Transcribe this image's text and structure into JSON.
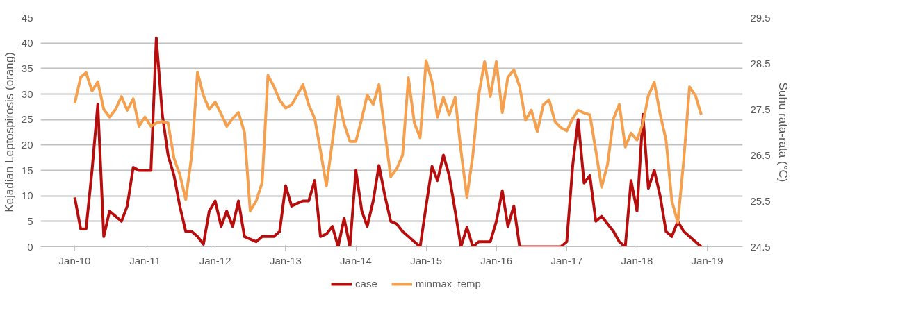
{
  "chart_data": {
    "type": "line",
    "ylabel": "Kejadian Leptospirosis (orang)",
    "y2label": "Suhu rata-rata (°C)",
    "x": [
      "2010-01",
      "2010-02",
      "2010-03",
      "2010-04",
      "2010-05",
      "2010-06",
      "2010-07",
      "2010-08",
      "2010-09",
      "2010-10",
      "2010-11",
      "2010-12",
      "2011-01",
      "2011-02",
      "2011-03",
      "2011-04",
      "2011-05",
      "2011-06",
      "2011-07",
      "2011-08",
      "2011-09",
      "2011-10",
      "2011-11",
      "2011-12",
      "2012-01",
      "2012-02",
      "2012-03",
      "2012-04",
      "2012-05",
      "2012-06",
      "2012-07",
      "2012-08",
      "2012-09",
      "2012-10",
      "2012-11",
      "2012-12",
      "2013-01",
      "2013-02",
      "2013-03",
      "2013-04",
      "2013-05",
      "2013-06",
      "2013-07",
      "2013-08",
      "2013-09",
      "2013-10",
      "2013-11",
      "2013-12",
      "2014-01",
      "2014-02",
      "2014-03",
      "2014-04",
      "2014-05",
      "2014-06",
      "2014-07",
      "2014-08",
      "2014-09",
      "2014-10",
      "2014-11",
      "2014-12",
      "2015-01",
      "2015-02",
      "2015-03",
      "2015-04",
      "2015-05",
      "2015-06",
      "2015-07",
      "2015-08",
      "2015-09",
      "2015-10",
      "2015-11",
      "2015-12",
      "2016-01",
      "2016-02",
      "2016-03",
      "2016-04",
      "2016-05",
      "2016-06",
      "2016-07",
      "2016-08",
      "2016-09",
      "2016-10",
      "2016-11",
      "2016-12",
      "2017-01",
      "2017-02",
      "2017-03",
      "2017-04",
      "2017-05",
      "2017-06",
      "2017-07",
      "2017-08",
      "2017-09",
      "2017-10",
      "2017-11",
      "2017-12",
      "2018-01",
      "2018-02",
      "2018-03",
      "2018-04",
      "2018-05",
      "2018-06",
      "2018-07",
      "2018-08",
      "2018-09",
      "2018-10",
      "2018-11",
      "2018-12"
    ],
    "series": [
      {
        "name": "case",
        "color": "#b80d0d",
        "values": [
          9.7,
          3.5,
          3.5,
          15,
          28,
          2,
          7,
          6,
          5,
          8,
          15.6,
          15,
          15,
          15,
          41,
          26,
          18,
          14,
          8,
          3,
          3,
          2,
          0.5,
          7,
          9,
          4,
          7,
          4,
          9,
          2,
          1.5,
          1,
          2,
          2,
          2,
          3,
          12,
          8,
          8.5,
          9,
          9,
          13,
          2,
          2.5,
          4,
          0,
          5.6,
          0,
          15,
          7,
          4,
          9,
          16,
          10,
          5,
          4.5,
          3,
          2,
          1,
          0,
          8,
          15.8,
          13,
          18,
          14,
          7,
          0,
          3.8,
          0,
          1,
          1,
          1,
          5,
          11,
          4,
          8,
          0,
          0,
          0,
          0,
          0,
          0,
          0,
          0,
          1,
          16,
          25,
          12.5,
          14,
          5,
          6,
          4.5,
          3,
          1,
          0,
          13,
          7,
          26,
          11.5,
          15,
          10,
          3,
          2,
          5,
          3,
          2,
          1,
          0
        ]
      },
      {
        "name": "minmax_temp",
        "color": "#f4a04e",
        "axis": "y2",
        "values": [
          27.63,
          28.2,
          28.3,
          27.9,
          28.1,
          27.5,
          27.33,
          27.5,
          27.78,
          27.48,
          27.73,
          27.13,
          27.33,
          27.13,
          27.2,
          27.23,
          27.2,
          26.43,
          26.08,
          25.53,
          26.5,
          28.31,
          27.8,
          27.5,
          27.66,
          27.4,
          27.13,
          27.3,
          27.43,
          27.0,
          25.28,
          25.5,
          25.9,
          28.24,
          28.0,
          27.7,
          27.53,
          27.6,
          27.8,
          28.04,
          27.6,
          27.3,
          26.6,
          25.83,
          26.8,
          27.78,
          27.18,
          26.8,
          26.8,
          27.3,
          27.81,
          27.61,
          28.04,
          27.0,
          26.03,
          26.2,
          26.5,
          28.19,
          27.2,
          26.88,
          28.56,
          28.1,
          27.33,
          27.76,
          27.38,
          27.76,
          26.6,
          25.58,
          26.5,
          27.8,
          28.54,
          27.78,
          28.54,
          27.43,
          28.2,
          28.36,
          28.0,
          27.26,
          27.48,
          27.01,
          27.6,
          27.71,
          27.23,
          27.1,
          27.03,
          27.3,
          27.48,
          27.42,
          27.38,
          26.6,
          25.8,
          26.3,
          27.3,
          27.61,
          26.68,
          26.98,
          26.83,
          27.2,
          27.8,
          28.09,
          27.4,
          26.83,
          25.5,
          25.03,
          26.4,
          27.99,
          27.8,
          27.38
        ]
      }
    ],
    "xlim": [
      "2009-07-08",
      "2019-07-04"
    ],
    "xticks": [
      {
        "value": "2010-01",
        "label": "Jan-10"
      },
      {
        "value": "2011-01",
        "label": "Jan-11"
      },
      {
        "value": "2012-01",
        "label": "Jan-12"
      },
      {
        "value": "2013-01",
        "label": "Jan-13"
      },
      {
        "value": "2014-01",
        "label": "Jan-14"
      },
      {
        "value": "2015-01",
        "label": "Jan-15"
      },
      {
        "value": "2016-01",
        "label": "Jan-16"
      },
      {
        "value": "2017-01",
        "label": "Jan-17"
      },
      {
        "value": "2018-01",
        "label": "Jan-18"
      },
      {
        "value": "2019-01",
        "label": "Jan-19"
      }
    ],
    "ylim": [
      0,
      45
    ],
    "yticks": [
      0,
      5,
      10,
      15,
      20,
      25,
      30,
      35,
      40,
      45
    ],
    "y2lim": [
      24.5,
      29.5
    ],
    "y2ticks": [
      24.5,
      25.5,
      26.5,
      27.5,
      28.5,
      29.5
    ],
    "grid": "y",
    "legend": "bottom",
    "marker": "none",
    "line_style": "solid"
  }
}
